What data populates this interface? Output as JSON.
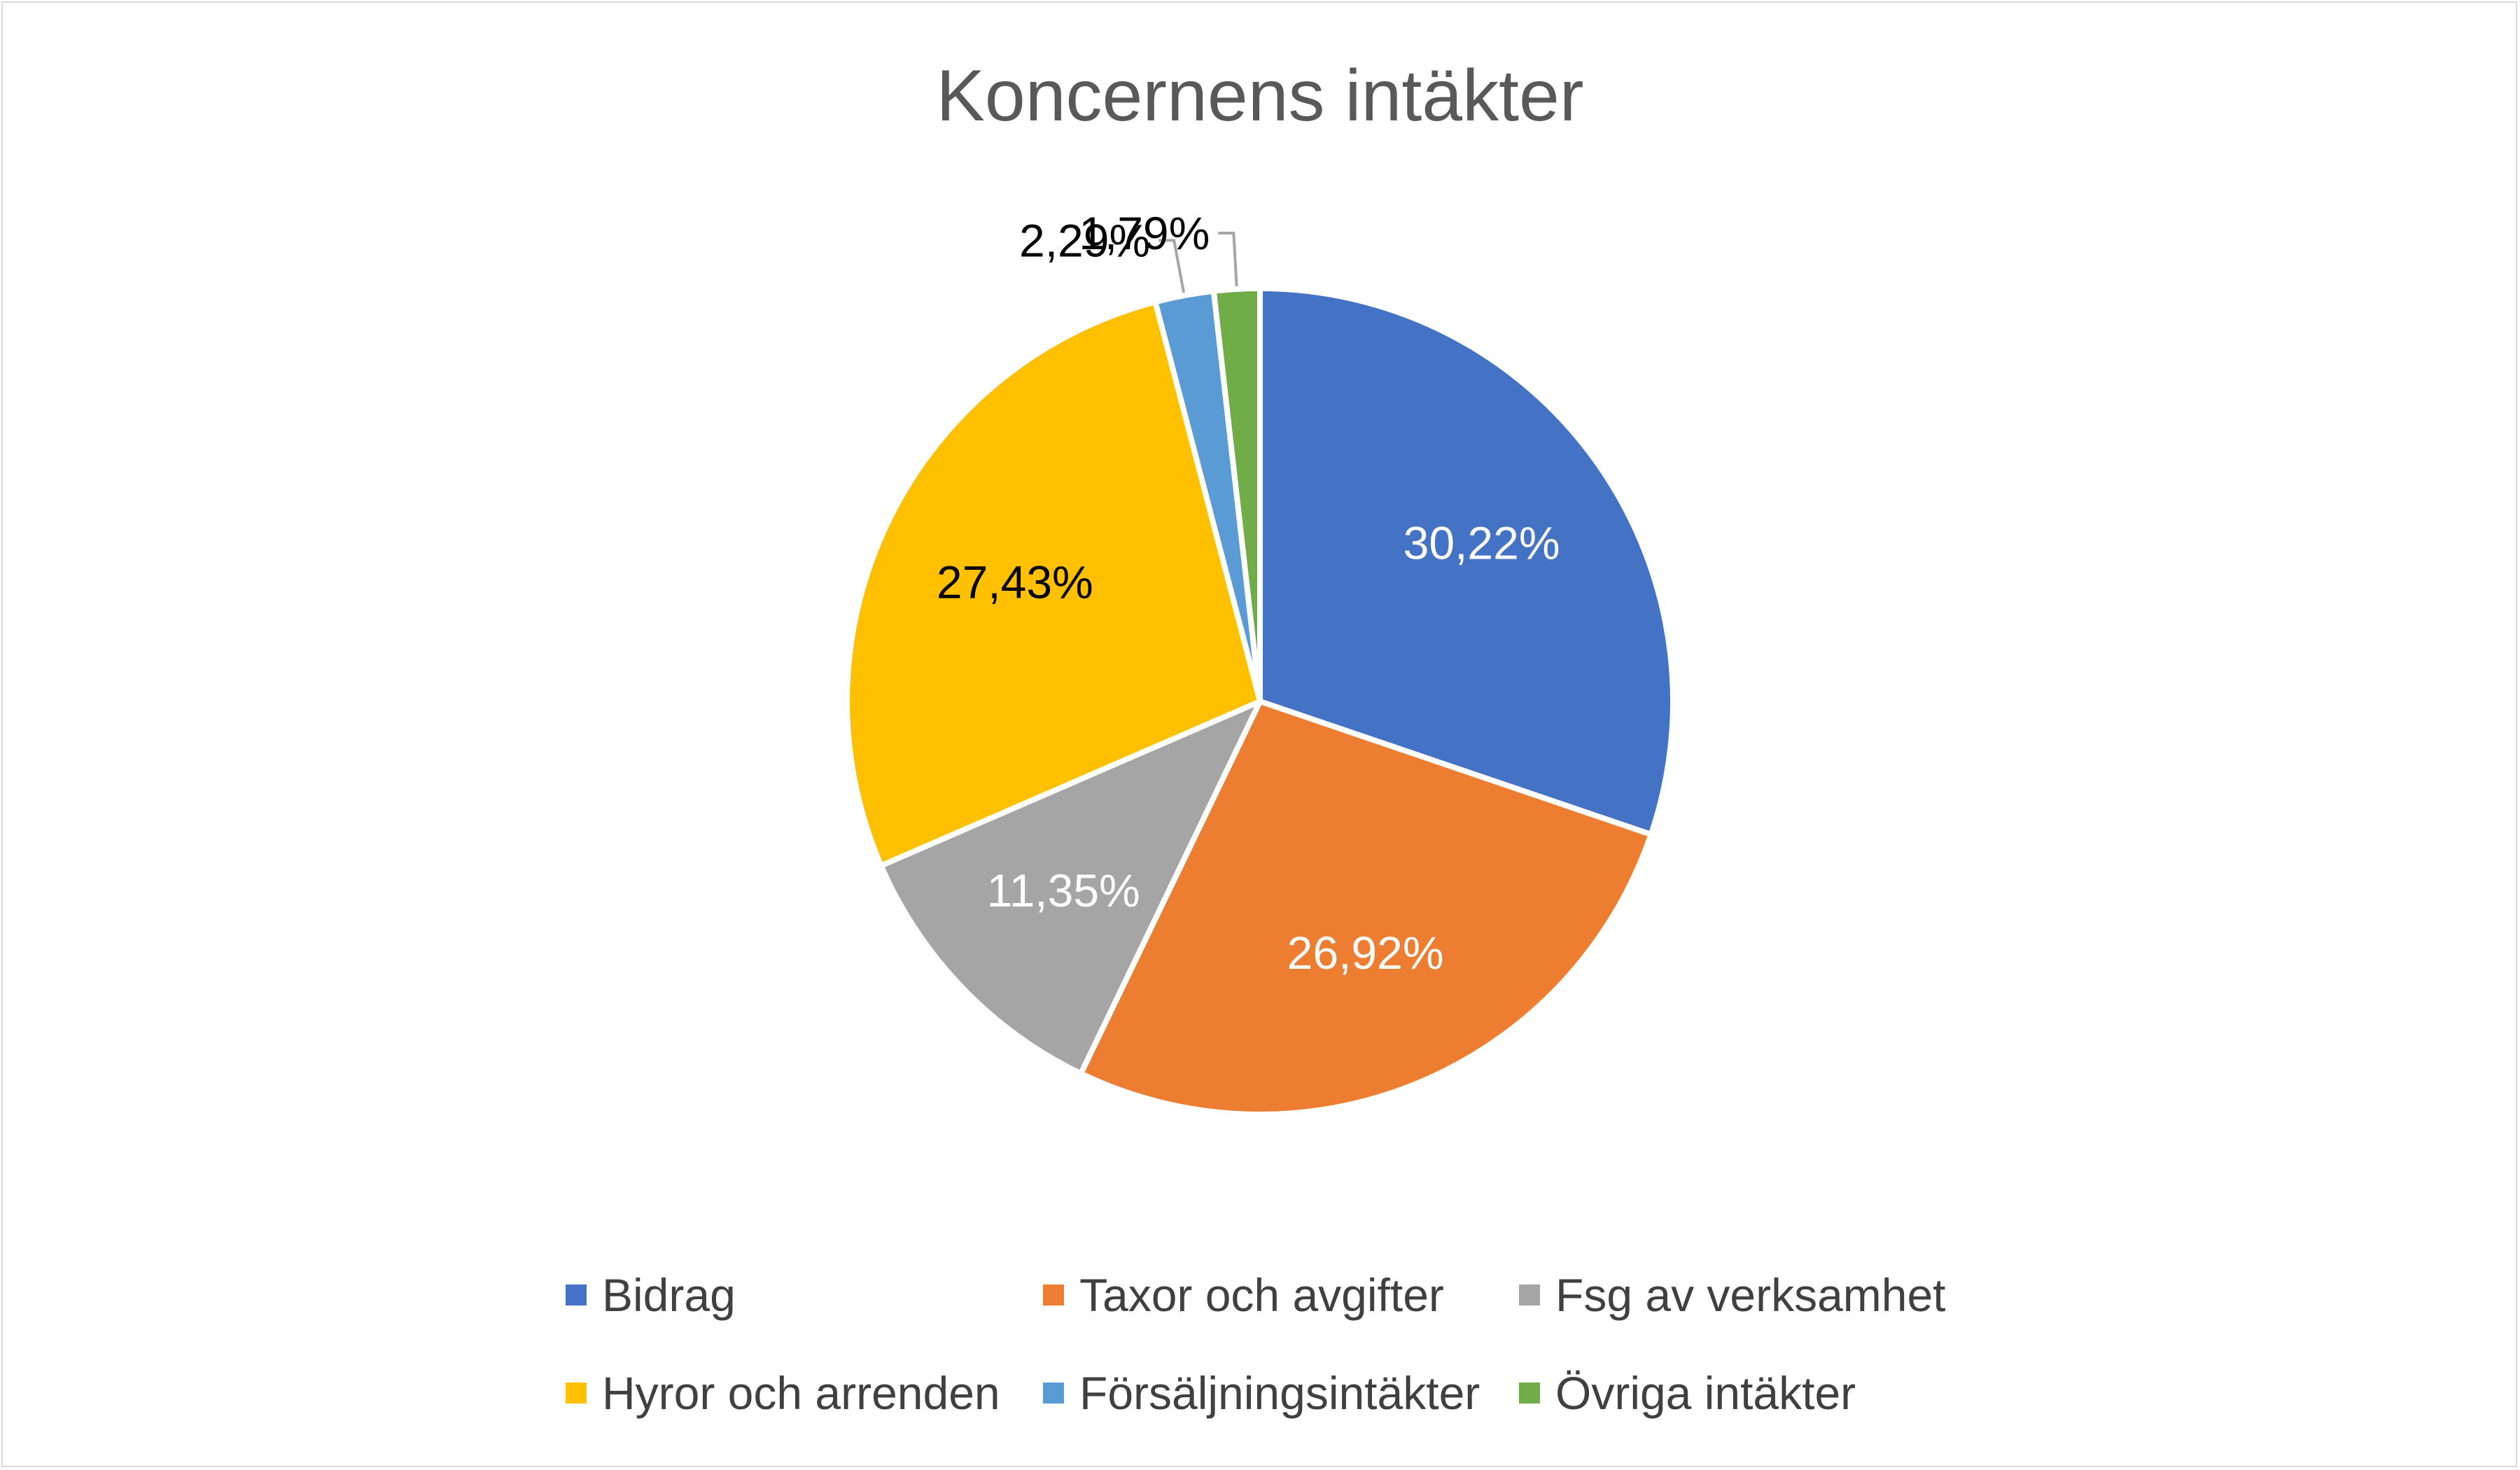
{
  "chart_data": {
    "type": "pie",
    "title": "Koncernens intäkter",
    "categories": [
      "Bidrag",
      "Taxor och avgifter",
      "Fsg av verksamhet",
      "Hyror och arrenden",
      "Försäljningsintäkter",
      "Övriga intäkter"
    ],
    "values": [
      30.22,
      26.92,
      11.35,
      27.43,
      2.29,
      1.79
    ],
    "labels": [
      "30,22%",
      "26,92%",
      "11,35%",
      "27,43%",
      "2,29%",
      "1,79%"
    ],
    "colors": [
      "#4472C4",
      "#ED7D31",
      "#A5A5A5",
      "#FFC000",
      "#5B9BD5",
      "#70AD47"
    ],
    "label_colors": [
      "#FFFFFF",
      "#FFFFFF",
      "#FFFFFF",
      "#000000",
      "#000000",
      "#000000"
    ],
    "start_angle_deg": 0,
    "direction": "clockwise",
    "legend_position": "bottom"
  }
}
